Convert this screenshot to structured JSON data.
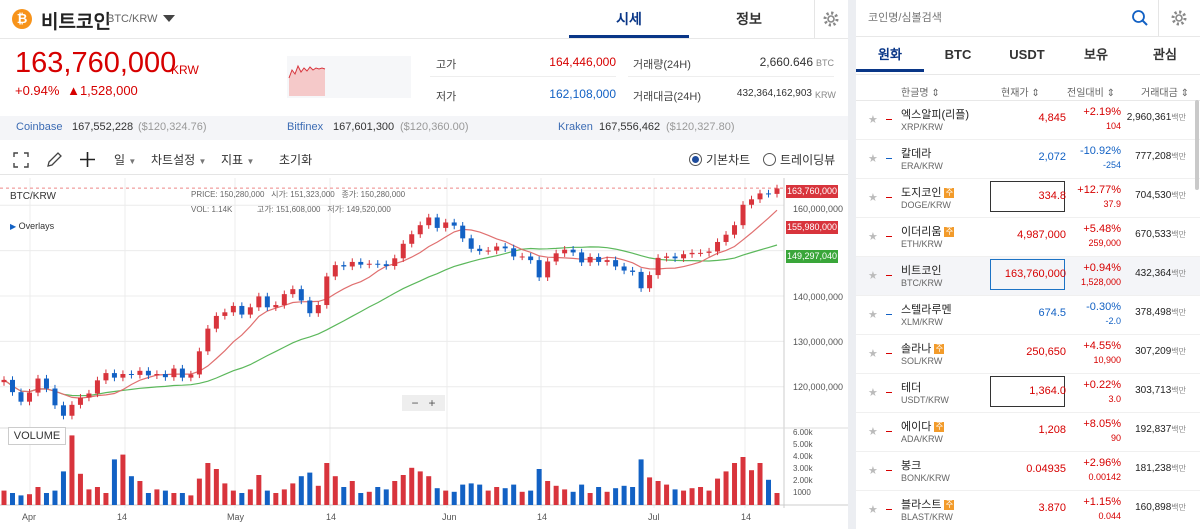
{
  "header": {
    "coin_name": "비트코인",
    "coin_pair": "BTC/KRW",
    "coin_logo_glyph": "₿",
    "tabs": [
      {
        "label": "시세",
        "active": true
      },
      {
        "label": "정보",
        "active": false
      }
    ],
    "price": "163,760,000",
    "price_unit": "KRW",
    "change_pct": "+0.94%",
    "change_abs": "▲1,528,000",
    "stats": {
      "high_label": "고가",
      "high": "164,446,000",
      "low_label": "저가",
      "low": "162,108,000",
      "vol_label": "거래량(24H)",
      "vol": "2,660.646",
      "vol_unit": "BTC",
      "amt_label": "거래대금(24H)",
      "amt": "432,364,162,903",
      "amt_unit": "KRW"
    }
  },
  "exchanges": [
    {
      "name": "Coinbase",
      "krw": "167,552,228",
      "usd": "($120,324.76)"
    },
    {
      "name": "Bitfinex",
      "krw": "167,601,300",
      "usd": "($120,360.00)"
    },
    {
      "name": "Kraken",
      "krw": "167,556,462",
      "usd": "($120,327.80)"
    }
  ],
  "toolbar": {
    "period": "일",
    "chart_settings": "차트설정",
    "indicators": "지표",
    "reset": "초기화",
    "basic_chart": "기본차트",
    "tradingview": "트레이딩뷰",
    "selected_mode": "기본차트"
  },
  "chart": {
    "symbol": "BTC/KRW",
    "overlays": "Overlays",
    "ohlc": {
      "price_label": "PRICE:",
      "price": "150,280,000",
      "open_label": "시가:",
      "open": "151,323,000",
      "close_label": "종가:",
      "close": "150,280,000",
      "vol_label": "VOL:",
      "vol": "1.14K",
      "high_label": "고가:",
      "high": "151,608,000",
      "low_label": "저가:",
      "low": "149,520,000"
    },
    "price_ticks": [
      "160,000,000",
      "150,000,000",
      "140,000,000",
      "130,000,000",
      "120,000,000"
    ],
    "price_tags": [
      {
        "text": "163,760,000",
        "color": "#d8343c"
      },
      {
        "text": "155,980,000",
        "color": "#d8343c"
      },
      {
        "text": "149,297,040",
        "color": "#3aa63a"
      }
    ],
    "volume_label": "VOLUME",
    "volume_ticks": [
      "6.00k",
      "5.00k",
      "4.00k",
      "3.00k",
      "2.00k",
      "1000"
    ],
    "date_ticks": [
      "Apr",
      "14",
      "May",
      "14",
      "Jun",
      "14",
      "Jul",
      "14"
    ],
    "zoom_minus": "−",
    "zoom_plus": "+"
  },
  "chart_data": {
    "type": "candlestick",
    "x_axis": [
      "Apr",
      "14",
      "May",
      "14",
      "Jun",
      "14",
      "Jul",
      "14"
    ],
    "y_range": [
      112000000,
      166000000
    ],
    "last_price": 163760000,
    "ma_short_last": 155980000,
    "ma_long_last": 149297040,
    "colors": {
      "up": "#d8343c",
      "down": "#1261c4",
      "ma_short": "#e07070",
      "ma_long": "#5cb85c"
    },
    "closes": [
      121.5,
      118.8,
      116.7,
      118.7,
      121.8,
      119.6,
      115.9,
      113.6,
      116.0,
      117.6,
      118.5,
      121.4,
      123.0,
      122.0,
      122.8,
      122.6,
      123.5,
      122.5,
      122.8,
      122.1,
      124.0,
      122.0,
      122.7,
      127.8,
      132.8,
      135.6,
      136.4,
      137.8,
      135.9,
      137.5,
      139.9,
      137.5,
      138.0,
      140.4,
      141.5,
      139.0,
      136.2,
      138.0,
      144.3,
      146.8,
      146.5,
      147.5,
      146.9,
      147.1,
      147.0,
      146.6,
      148.3,
      151.5,
      153.6,
      155.6,
      157.3,
      155.0,
      156.2,
      155.5,
      152.7,
      150.4,
      149.9,
      150.0,
      150.9,
      150.5,
      148.7,
      148.7,
      147.9,
      144.1,
      147.6,
      149.4,
      150.2,
      149.6,
      147.4,
      148.6,
      147.5,
      147.9,
      146.5,
      145.6,
      145.3,
      141.7,
      144.6,
      148.4,
      148.7,
      148.3,
      149.2,
      149.5,
      149.5,
      149.8,
      151.9,
      153.5,
      155.6,
      160.1,
      161.3,
      162.6,
      162.5,
      163.7
    ],
    "volume_unit": "BTC",
    "volumes": [
      1.2,
      1.0,
      0.8,
      0.9,
      1.5,
      1.0,
      1.2,
      2.8,
      5.8,
      2.6,
      1.3,
      1.5,
      1.0,
      3.8,
      4.2,
      2.4,
      2.0,
      1.0,
      1.3,
      1.2,
      1.0,
      1.0,
      0.8,
      2.2,
      3.5,
      3.0,
      1.8,
      1.2,
      1.0,
      1.3,
      2.5,
      1.2,
      1.0,
      1.3,
      1.8,
      2.4,
      2.7,
      1.6,
      3.5,
      2.4,
      1.5,
      2.0,
      1.0,
      1.1,
      1.5,
      1.3,
      2.0,
      2.5,
      3.1,
      2.8,
      2.4,
      1.4,
      1.2,
      1.1,
      1.7,
      1.8,
      1.7,
      1.2,
      1.5,
      1.4,
      1.7,
      1.1,
      1.2,
      3.0,
      2.0,
      1.6,
      1.3,
      1.1,
      1.7,
      1.0,
      1.5,
      1.1,
      1.4,
      1.6,
      1.5,
      3.8,
      2.3,
      2.0,
      1.7,
      1.3,
      1.2,
      1.4,
      1.5,
      1.2,
      2.2,
      2.8,
      3.5,
      4.0,
      2.9,
      3.5,
      2.1,
      1.0
    ]
  },
  "panel": {
    "search_placeholder": "코인명/심볼검색",
    "tabs": [
      {
        "label": "원화",
        "active": true
      },
      {
        "label": "BTC"
      },
      {
        "label": "USDT"
      },
      {
        "label": "보유"
      },
      {
        "label": "관심"
      }
    ],
    "col_headers": {
      "name": "한글명 ⇕",
      "price": "현재가 ⇕",
      "change": "전일대비 ⇕",
      "volume": "거래대금 ⇕"
    },
    "rows": [
      {
        "name": "엑스알피(리플)",
        "pair": "XRP/KRW",
        "price": "4,845",
        "chg": "+2.19%",
        "chg2": "104",
        "vol": "2,960,361",
        "unit": "백만",
        "up": true,
        "badge": "",
        "box": false,
        "sel": false
      },
      {
        "name": "칼데라",
        "pair": "ERA/KRW",
        "price": "2,072",
        "chg": "-10.92%",
        "chg2": "-254",
        "vol": "777,208",
        "unit": "백만",
        "up": false,
        "badge": "",
        "box": false,
        "sel": false
      },
      {
        "name": "도지코인",
        "pair": "DOGE/KRW",
        "price": "334.8",
        "chg": "+12.77%",
        "chg2": "37.9",
        "vol": "704,530",
        "unit": "백만",
        "up": true,
        "badge": "주",
        "box": true,
        "sel": false
      },
      {
        "name": "이더리움",
        "pair": "ETH/KRW",
        "price": "4,987,000",
        "chg": "+5.48%",
        "chg2": "259,000",
        "vol": "670,533",
        "unit": "백만",
        "up": true,
        "badge": "주",
        "box": false,
        "sel": false
      },
      {
        "name": "비트코인",
        "pair": "BTC/KRW",
        "price": "163,760,000",
        "chg": "+0.94%",
        "chg2": "1,528,000",
        "vol": "432,364",
        "unit": "백만",
        "up": true,
        "badge": "",
        "box": true,
        "sel": true
      },
      {
        "name": "스텔라루멘",
        "pair": "XLM/KRW",
        "price": "674.5",
        "chg": "-0.30%",
        "chg2": "-2.0",
        "vol": "378,498",
        "unit": "백만",
        "up": false,
        "badge": "",
        "box": false,
        "sel": false
      },
      {
        "name": "솔라나",
        "pair": "SOL/KRW",
        "price": "250,650",
        "chg": "+4.55%",
        "chg2": "10,900",
        "vol": "307,209",
        "unit": "백만",
        "up": true,
        "badge": "주",
        "box": false,
        "sel": false
      },
      {
        "name": "테더",
        "pair": "USDT/KRW",
        "price": "1,364.0",
        "chg": "+0.22%",
        "chg2": "3.0",
        "vol": "303,713",
        "unit": "백만",
        "up": true,
        "badge": "",
        "box": true,
        "sel": false
      },
      {
        "name": "에이다",
        "pair": "ADA/KRW",
        "price": "1,208",
        "chg": "+8.05%",
        "chg2": "90",
        "vol": "192,837",
        "unit": "백만",
        "up": true,
        "badge": "주",
        "box": false,
        "sel": false
      },
      {
        "name": "봉크",
        "pair": "BONK/KRW",
        "price": "0.04935",
        "chg": "+2.96%",
        "chg2": "0.00142",
        "vol": "181,238",
        "unit": "백만",
        "up": true,
        "badge": "",
        "box": false,
        "sel": false
      },
      {
        "name": "블라스트",
        "pair": "BLAST/KRW",
        "price": "3.870",
        "chg": "+1.15%",
        "chg2": "0.044",
        "vol": "160,898",
        "unit": "백만",
        "up": true,
        "badge": "주",
        "box": false,
        "sel": false
      }
    ]
  }
}
